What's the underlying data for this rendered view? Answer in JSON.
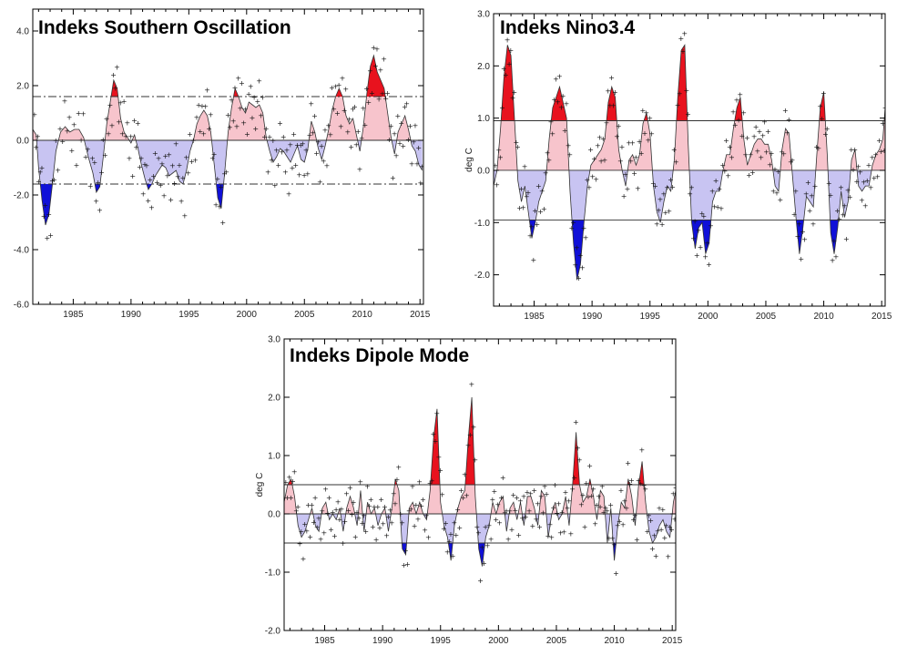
{
  "chart_data": [
    {
      "id": "soi",
      "type": "area",
      "title": "Indeks Southern Oscillation",
      "ylabel": "",
      "xlabel": "",
      "xlim": [
        1981.5,
        2015.3
      ],
      "ylim": [
        -6.0,
        4.8
      ],
      "x_ticks": [
        1985,
        1990,
        1995,
        2000,
        2005,
        2010,
        2015
      ],
      "x_tick_labels": [
        "1985",
        "1990",
        "1995",
        "2000",
        "2005",
        "2010",
        "2015"
      ],
      "y_ticks": [
        -6,
        -4,
        -2,
        0,
        2,
        4
      ],
      "y_tick_labels": [
        "-6.0",
        "-4.0",
        "-2.0",
        "0.0",
        "2.0",
        "4.0"
      ],
      "reference_lines": [
        0,
        1.6,
        -1.6
      ],
      "dashed_thresholds": true,
      "colors": {
        "strong_pos": "#e8121e",
        "weak_pos": "#f7c4cc",
        "weak_neg": "#c8c4f2",
        "strong_neg": "#1010d8"
      },
      "x": [
        1981.5,
        1981.8,
        1982.0,
        1982.3,
        1982.6,
        1982.9,
        1983.2,
        1983.5,
        1983.9,
        1984.3,
        1984.7,
        1985.1,
        1985.5,
        1985.9,
        1986.3,
        1986.7,
        1987.0,
        1987.3,
        1987.6,
        1987.9,
        1988.2,
        1988.5,
        1988.8,
        1989.1,
        1989.4,
        1989.7,
        1990.0,
        1990.3,
        1990.6,
        1990.9,
        1991.2,
        1991.5,
        1991.8,
        1992.1,
        1992.4,
        1992.7,
        1993.0,
        1993.3,
        1993.6,
        1993.9,
        1994.2,
        1994.5,
        1994.8,
        1995.1,
        1995.4,
        1995.7,
        1996.0,
        1996.3,
        1996.6,
        1996.9,
        1997.2,
        1997.5,
        1997.8,
        1998.1,
        1998.4,
        1998.7,
        1999.0,
        1999.3,
        1999.6,
        1999.9,
        2000.2,
        2000.5,
        2000.8,
        2001.1,
        2001.4,
        2001.7,
        2002.0,
        2002.3,
        2002.6,
        2002.9,
        2003.2,
        2003.5,
        2003.8,
        2004.1,
        2004.4,
        2004.7,
        2005.0,
        2005.3,
        2005.6,
        2005.9,
        2006.2,
        2006.5,
        2006.8,
        2007.1,
        2007.4,
        2007.7,
        2008.0,
        2008.3,
        2008.6,
        2008.9,
        2009.2,
        2009.5,
        2009.8,
        2010.1,
        2010.4,
        2010.7,
        2011.0,
        2011.3,
        2011.6,
        2011.9,
        2012.2,
        2012.5,
        2012.8,
        2013.1,
        2013.4,
        2013.7,
        2014.0,
        2014.3,
        2014.6,
        2014.9,
        2015.2
      ],
      "values": [
        0.4,
        0.2,
        -1.0,
        -2.2,
        -3.1,
        -2.7,
        -1.6,
        -0.4,
        0.3,
        0.5,
        0.3,
        0.4,
        0.4,
        0.1,
        -0.6,
        -1.2,
        -1.9,
        -1.7,
        -0.6,
        0.6,
        1.4,
        2.2,
        1.9,
        0.8,
        0.3,
        0.1,
        -0.1,
        0.2,
        -0.3,
        -0.9,
        -1.4,
        -1.8,
        -1.6,
        -1.3,
        -1.1,
        -0.9,
        -1.0,
        -1.3,
        -1.2,
        -1.1,
        -1.5,
        -1.6,
        -1.1,
        -0.4,
        0.0,
        0.6,
        0.9,
        1.1,
        0.9,
        0.3,
        -0.9,
        -2.1,
        -2.5,
        -1.2,
        0.3,
        1.2,
        1.9,
        1.6,
        1.2,
        1.0,
        1.4,
        1.3,
        1.2,
        1.3,
        1.0,
        0.1,
        -0.4,
        -0.8,
        -0.6,
        -0.3,
        -0.4,
        -0.6,
        -0.8,
        -0.5,
        -0.2,
        -0.7,
        -0.8,
        -0.3,
        0.7,
        0.3,
        -0.3,
        -0.7,
        -0.2,
        0.4,
        1.1,
        1.6,
        1.9,
        1.6,
        0.9,
        0.6,
        0.8,
        0.2,
        -0.4,
        0.5,
        1.7,
        2.7,
        3.1,
        2.5,
        2.2,
        1.9,
        1.0,
        0.1,
        -0.5,
        0.3,
        0.6,
        0.9,
        0.4,
        -0.2,
        -0.4,
        -0.9,
        -1.1
      ],
      "obs_offsets": [
        0.6,
        -0.5,
        0.3,
        -0.8,
        0.2,
        0.9,
        -0.3,
        0.5,
        -0.6,
        0.1,
        -1.1,
        0.4,
        -0.2,
        0.7,
        -0.9,
        0.3,
        -0.4,
        1.0,
        -0.1,
        0.5,
        -0.7,
        0.2,
        -1.3,
        0.6,
        -0.3,
        0.8,
        -0.5,
        0.1,
        -0.9,
        0.4
      ]
    },
    {
      "id": "nino34",
      "type": "area",
      "title": "Indeks Nino3.4",
      "ylabel": "deg C",
      "xlabel": "",
      "xlim": [
        1981.5,
        2015.3
      ],
      "ylim": [
        -2.6,
        3.0
      ],
      "x_ticks": [
        1985,
        1990,
        1995,
        2000,
        2005,
        2010,
        2015
      ],
      "x_tick_labels": [
        "1985",
        "1990",
        "1995",
        "2000",
        "2005",
        "2010",
        "2015"
      ],
      "y_ticks": [
        -2,
        -1,
        0,
        1,
        2,
        3
      ],
      "y_tick_labels": [
        "-2.0",
        "-1.0",
        "0.0",
        "1.0",
        "2.0",
        "3.0"
      ],
      "reference_lines": [
        0,
        0.95,
        -0.95
      ],
      "dashed_thresholds": false,
      "colors": {
        "strong_pos": "#e8121e",
        "weak_pos": "#f7c4cc",
        "weak_neg": "#c8c4f2",
        "strong_neg": "#1010d8"
      },
      "x": [
        1981.5,
        1981.8,
        1982.1,
        1982.4,
        1982.7,
        1983.0,
        1983.3,
        1983.6,
        1983.9,
        1984.2,
        1984.5,
        1984.8,
        1985.1,
        1985.4,
        1985.7,
        1986.0,
        1986.3,
        1986.6,
        1986.9,
        1987.2,
        1987.5,
        1987.8,
        1988.1,
        1988.4,
        1988.7,
        1989.0,
        1989.3,
        1989.6,
        1989.9,
        1990.2,
        1990.5,
        1990.8,
        1991.1,
        1991.4,
        1991.7,
        1992.0,
        1992.3,
        1992.6,
        1992.9,
        1993.2,
        1993.5,
        1993.8,
        1994.1,
        1994.4,
        1994.7,
        1995.0,
        1995.3,
        1995.6,
        1995.9,
        1996.2,
        1996.5,
        1996.8,
        1997.1,
        1997.4,
        1997.7,
        1998.0,
        1998.3,
        1998.6,
        1998.9,
        1999.2,
        1999.5,
        1999.8,
        2000.1,
        2000.4,
        2000.7,
        2001.0,
        2001.3,
        2001.6,
        2001.9,
        2002.2,
        2002.5,
        2002.8,
        2003.1,
        2003.4,
        2003.7,
        2004.0,
        2004.3,
        2004.6,
        2004.9,
        2005.2,
        2005.5,
        2005.8,
        2006.1,
        2006.4,
        2006.7,
        2007.0,
        2007.3,
        2007.6,
        2007.9,
        2008.2,
        2008.5,
        2008.8,
        2009.1,
        2009.4,
        2009.7,
        2010.0,
        2010.3,
        2010.6,
        2010.9,
        2011.2,
        2011.5,
        2011.8,
        2012.1,
        2012.4,
        2012.7,
        2013.0,
        2013.3,
        2013.6,
        2013.9,
        2014.2,
        2014.5,
        2014.8,
        2015.1,
        2015.3
      ],
      "values": [
        -0.3,
        0.0,
        0.8,
        1.8,
        2.4,
        2.2,
        1.0,
        -0.2,
        -0.6,
        -0.3,
        -0.8,
        -1.3,
        -1.0,
        -0.6,
        -0.4,
        -0.2,
        0.6,
        1.2,
        1.4,
        1.6,
        1.3,
        1.0,
        -0.4,
        -1.4,
        -2.1,
        -1.8,
        -1.0,
        -0.3,
        0.1,
        0.2,
        0.3,
        0.4,
        0.6,
        1.3,
        1.6,
        1.4,
        0.4,
        0.0,
        -0.3,
        0.2,
        0.3,
        0.1,
        0.3,
        0.9,
        1.1,
        0.7,
        -0.3,
        -0.8,
        -1.0,
        -0.6,
        -0.3,
        -0.4,
        0.2,
        1.4,
        2.3,
        2.4,
        0.5,
        -1.0,
        -1.5,
        -1.1,
        -1.0,
        -1.6,
        -1.4,
        -0.6,
        -0.4,
        -0.4,
        0.0,
        0.3,
        0.3,
        0.8,
        1.2,
        1.4,
        0.6,
        0.1,
        0.3,
        0.5,
        0.6,
        0.6,
        0.5,
        0.5,
        0.2,
        -0.3,
        -0.4,
        0.4,
        0.8,
        0.7,
        -0.1,
        -0.9,
        -1.6,
        -1.1,
        -0.5,
        -0.6,
        -0.7,
        0.3,
        1.2,
        1.5,
        0.3,
        -1.2,
        -1.6,
        -1.1,
        -0.4,
        -0.9,
        -0.6,
        0.2,
        0.4,
        -0.3,
        -0.4,
        -0.3,
        -0.3,
        0.1,
        0.3,
        0.4,
        0.6,
        1.2
      ],
      "obs_offsets": [
        0.3,
        -0.2,
        0.15,
        -0.35,
        0.1,
        0.4,
        -0.15,
        0.25,
        -0.3,
        0.05,
        -0.45,
        0.2,
        -0.1,
        0.35,
        -0.4,
        0.15,
        -0.2,
        0.45,
        -0.05,
        0.25,
        -0.3,
        0.1,
        -0.5,
        0.3,
        -0.15,
        0.4,
        -0.25,
        0.05,
        -0.4,
        0.2
      ]
    },
    {
      "id": "dmi",
      "type": "area",
      "title": "Indeks Dipole Mode",
      "ylabel": "deg C",
      "xlabel": "",
      "xlim": [
        1981.5,
        2015.3
      ],
      "ylim": [
        -2.0,
        3.0
      ],
      "x_ticks": [
        1985,
        1990,
        1995,
        2000,
        2005,
        2010,
        2015
      ],
      "x_tick_labels": [
        "1985",
        "1990",
        "1995",
        "2000",
        "2005",
        "2010",
        "2015"
      ],
      "y_ticks": [
        -2,
        -1,
        0,
        1,
        2,
        3
      ],
      "y_tick_labels": [
        "-2.0",
        "-1.0",
        "0.0",
        "1.0",
        "2.0",
        "3.0"
      ],
      "reference_lines": [
        0,
        0.5,
        -0.5
      ],
      "dashed_thresholds": false,
      "colors": {
        "strong_pos": "#e8121e",
        "weak_pos": "#f7c4cc",
        "weak_neg": "#c8c4f2",
        "strong_neg": "#1010d8"
      },
      "x": [
        1981.5,
        1981.8,
        1982.1,
        1982.4,
        1982.7,
        1983.0,
        1983.3,
        1983.6,
        1983.9,
        1984.2,
        1984.5,
        1984.8,
        1985.1,
        1985.4,
        1985.7,
        1986.0,
        1986.3,
        1986.6,
        1986.9,
        1987.2,
        1987.5,
        1987.8,
        1988.1,
        1988.4,
        1988.7,
        1989.0,
        1989.3,
        1989.6,
        1989.9,
        1990.2,
        1990.5,
        1990.8,
        1991.1,
        1991.4,
        1991.7,
        1992.0,
        1992.3,
        1992.6,
        1992.9,
        1993.2,
        1993.5,
        1993.8,
        1994.1,
        1994.4,
        1994.7,
        1995.0,
        1995.3,
        1995.6,
        1995.9,
        1996.2,
        1996.5,
        1996.8,
        1997.1,
        1997.4,
        1997.7,
        1998.0,
        1998.3,
        1998.6,
        1998.9,
        1999.2,
        1999.5,
        1999.8,
        2000.1,
        2000.4,
        2000.7,
        2001.0,
        2001.3,
        2001.6,
        2001.9,
        2002.2,
        2002.5,
        2002.8,
        2003.1,
        2003.4,
        2003.7,
        2004.0,
        2004.3,
        2004.6,
        2004.9,
        2005.2,
        2005.5,
        2005.8,
        2006.1,
        2006.4,
        2006.7,
        2007.0,
        2007.3,
        2007.6,
        2007.9,
        2008.2,
        2008.5,
        2008.8,
        2009.1,
        2009.4,
        2009.7,
        2010.0,
        2010.3,
        2010.6,
        2010.9,
        2011.2,
        2011.5,
        2011.8,
        2012.1,
        2012.4,
        2012.7,
        2013.0,
        2013.3,
        2013.6,
        2013.9,
        2014.2,
        2014.5,
        2014.8,
        2015.1,
        2015.3
      ],
      "values": [
        0.2,
        0.5,
        0.6,
        0.3,
        -0.2,
        -0.4,
        -0.3,
        -0.1,
        0.1,
        -0.2,
        -0.3,
        0.1,
        0.2,
        -0.1,
        0.0,
        -0.1,
        0.1,
        -0.3,
        0.1,
        0.3,
        0.1,
        -0.2,
        0.4,
        -0.3,
        0.2,
        0.0,
        0.1,
        -0.2,
        0.0,
        0.1,
        -0.3,
        0.1,
        0.6,
        0.4,
        -0.6,
        -0.7,
        0.1,
        0.2,
        0.0,
        0.2,
        0.0,
        -0.1,
        0.4,
        1.3,
        1.8,
        0.2,
        -0.2,
        -0.4,
        -0.8,
        -0.2,
        0.1,
        0.3,
        0.4,
        1.3,
        2.0,
        0.3,
        -0.6,
        -0.9,
        -0.4,
        -0.2,
        0.2,
        0.0,
        0.2,
        0.3,
        -0.3,
        0.1,
        0.2,
        -0.1,
        0.2,
        -0.2,
        0.3,
        0.3,
        0.1,
        -0.2,
        0.4,
        0.3,
        -0.4,
        0.0,
        0.2,
        -0.1,
        0.0,
        0.3,
        -0.2,
        0.5,
        1.4,
        0.5,
        0.2,
        0.3,
        0.6,
        0.3,
        -0.1,
        0.4,
        0.3,
        -0.5,
        0.1,
        -0.8,
        -0.2,
        0.2,
        0.1,
        0.6,
        0.3,
        -0.2,
        0.5,
        0.9,
        0.2,
        -0.3,
        -0.5,
        -0.4,
        -0.2,
        -0.1,
        -0.3,
        -0.4,
        0.2,
        0.4
      ],
      "obs_offsets": [
        0.25,
        -0.15,
        0.1,
        -0.3,
        0.05,
        0.35,
        -0.1,
        0.2,
        -0.25,
        0.05,
        -0.4,
        0.15,
        -0.05,
        0.3,
        -0.35,
        0.1,
        -0.15,
        0.4,
        0.0,
        0.2,
        -0.25,
        0.05,
        -0.45,
        0.25,
        -0.1,
        0.3,
        -0.2,
        0.05,
        -0.35,
        0.15
      ]
    }
  ]
}
